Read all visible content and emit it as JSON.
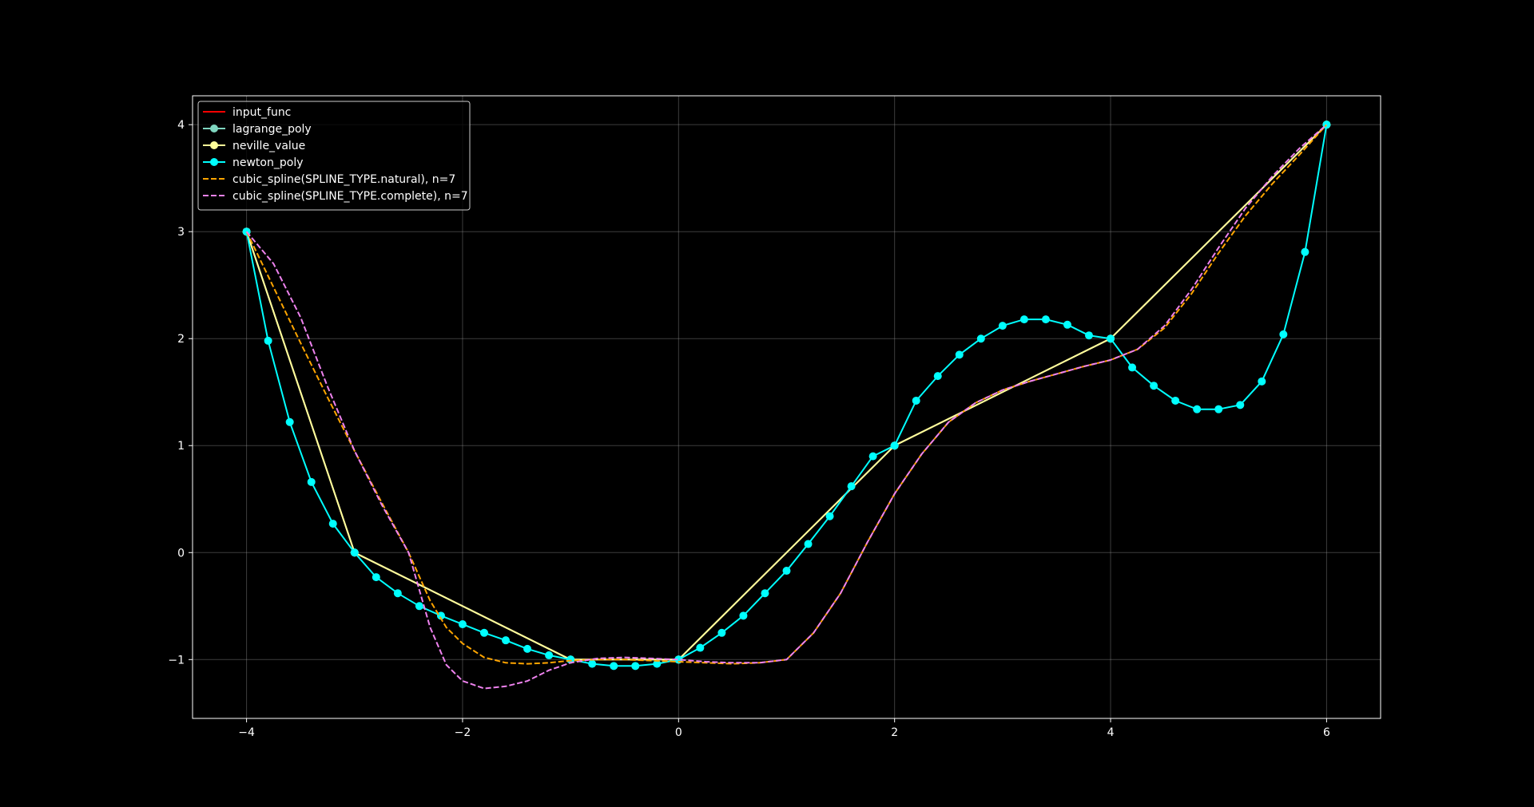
{
  "chart_data": {
    "type": "line",
    "title": "",
    "xlabel": "",
    "ylabel": "",
    "xlim": [
      -4.5,
      6.5
    ],
    "ylim": [
      -1.55,
      4.27
    ],
    "grid": true,
    "legend_position": "upper-left",
    "background": "#000000",
    "xticks": [
      -4,
      -2,
      0,
      2,
      4,
      6
    ],
    "yticks": [
      -1,
      0,
      1,
      2,
      3,
      4
    ],
    "xtick_labels": [
      "−4",
      "−2",
      "0",
      "2",
      "4",
      "6"
    ],
    "ytick_labels": [
      "−1",
      "0",
      "1",
      "2",
      "3",
      "4"
    ],
    "series": [
      {
        "name": "input_func",
        "style": "solid",
        "marker": "none",
        "color": "#ff0000",
        "x": [
          -4,
          -3,
          -1,
          0,
          2,
          4,
          6
        ],
        "y": [
          3,
          0,
          -1,
          -1,
          1,
          2,
          4
        ]
      },
      {
        "name": "lagrange_poly",
        "style": "solid",
        "marker": "circle",
        "color": "#7fd6c0",
        "x": [
          -4,
          -3,
          -1,
          0,
          2,
          4,
          6
        ],
        "y": [
          3,
          0,
          -1,
          -1,
          1,
          2,
          4
        ]
      },
      {
        "name": "neville_value",
        "style": "solid",
        "marker": "circle",
        "color": "#ffff99",
        "x": [
          -4,
          -3,
          -1,
          0,
          2,
          4,
          6
        ],
        "y": [
          3,
          0,
          -1,
          -1,
          1,
          2,
          4
        ]
      },
      {
        "name": "newton_poly",
        "style": "solid",
        "marker": "circle",
        "color": "#00ffff",
        "x": [
          -4.0,
          -3.8,
          -3.6,
          -3.4,
          -3.2,
          -3.0,
          -2.8,
          -2.6,
          -2.4,
          -2.2,
          -2.0,
          -1.8,
          -1.6,
          -1.4,
          -1.2,
          -1.0,
          -0.8,
          -0.6,
          -0.4,
          -0.2,
          0.0,
          0.2,
          0.4,
          0.6,
          0.8,
          1.0,
          1.2,
          1.4,
          1.6,
          1.8,
          2.0,
          2.2,
          2.4,
          2.6,
          2.8,
          3.0,
          3.2,
          3.4,
          3.6,
          3.8,
          4.0,
          4.2,
          4.4,
          4.6,
          4.8,
          5.0,
          5.2,
          5.4,
          5.6,
          5.8,
          6.0
        ],
        "y": [
          3.0,
          1.98,
          1.22,
          0.66,
          0.27,
          0.0,
          -0.23,
          -0.38,
          -0.5,
          -0.59,
          -0.67,
          -0.75,
          -0.82,
          -0.9,
          -0.96,
          -1.0,
          -1.04,
          -1.06,
          -1.06,
          -1.04,
          -1.0,
          -0.89,
          -0.75,
          -0.59,
          -0.38,
          -0.17,
          0.08,
          0.34,
          0.62,
          0.9,
          1.0,
          1.42,
          1.65,
          1.85,
          2.0,
          2.12,
          2.18,
          2.18,
          2.13,
          2.03,
          2.0,
          1.73,
          1.56,
          1.42,
          1.34,
          1.34,
          1.38,
          1.6,
          2.04,
          2.81,
          4.0
        ],
        "marker_every": 1
      },
      {
        "name": "cubic_spline(SPLINE_TYPE.natural), n=7",
        "style": "dashed",
        "marker": "none",
        "color": "#ffa500",
        "x": [
          -4.0,
          -3.75,
          -3.5,
          -3.25,
          -3.0,
          -2.75,
          -2.5,
          -2.3,
          -2.15,
          -2.0,
          -1.8,
          -1.6,
          -1.4,
          -1.2,
          -1.0,
          -0.75,
          -0.5,
          -0.25,
          0.0,
          0.25,
          0.5,
          0.75,
          1.0,
          1.25,
          1.5,
          1.75,
          2.0,
          2.25,
          2.5,
          2.75,
          3.0,
          3.25,
          3.5,
          3.75,
          4.0,
          4.25,
          4.5,
          4.75,
          5.0,
          5.25,
          5.5,
          5.75,
          6.0
        ],
        "y": [
          3.0,
          2.48,
          1.96,
          1.45,
          0.95,
          0.47,
          0.0,
          -0.45,
          -0.7,
          -0.85,
          -0.98,
          -1.03,
          -1.04,
          -1.03,
          -1.01,
          -1.0,
          -1.0,
          -1.01,
          -1.02,
          -1.03,
          -1.04,
          -1.03,
          -1.0,
          -0.75,
          -0.38,
          0.1,
          0.55,
          0.92,
          1.22,
          1.4,
          1.52,
          1.6,
          1.67,
          1.74,
          1.8,
          1.9,
          2.1,
          2.42,
          2.8,
          3.15,
          3.45,
          3.72,
          4.0
        ]
      },
      {
        "name": "cubic_spline(SPLINE_TYPE.complete), n=7",
        "style": "dashed",
        "marker": "none",
        "color": "#ee82ee",
        "x": [
          -4.0,
          -3.75,
          -3.5,
          -3.25,
          -3.0,
          -2.75,
          -2.5,
          -2.3,
          -2.15,
          -2.0,
          -1.8,
          -1.6,
          -1.4,
          -1.2,
          -1.0,
          -0.75,
          -0.5,
          -0.25,
          0.0,
          0.25,
          0.5,
          0.75,
          1.0,
          1.25,
          1.5,
          1.75,
          2.0,
          2.25,
          2.5,
          2.75,
          3.0,
          3.25,
          3.5,
          3.75,
          4.0,
          4.25,
          4.5,
          4.75,
          5.0,
          5.25,
          5.5,
          5.75,
          6.0
        ],
        "y": [
          3.0,
          2.7,
          2.2,
          1.55,
          0.95,
          0.45,
          0.0,
          -0.7,
          -1.05,
          -1.2,
          -1.27,
          -1.25,
          -1.2,
          -1.1,
          -1.03,
          -0.99,
          -0.98,
          -0.99,
          -1.0,
          -1.02,
          -1.03,
          -1.03,
          -1.0,
          -0.75,
          -0.38,
          0.1,
          0.55,
          0.92,
          1.22,
          1.4,
          1.52,
          1.6,
          1.67,
          1.74,
          1.8,
          1.9,
          2.12,
          2.46,
          2.85,
          3.22,
          3.52,
          3.78,
          4.0
        ]
      }
    ]
  }
}
